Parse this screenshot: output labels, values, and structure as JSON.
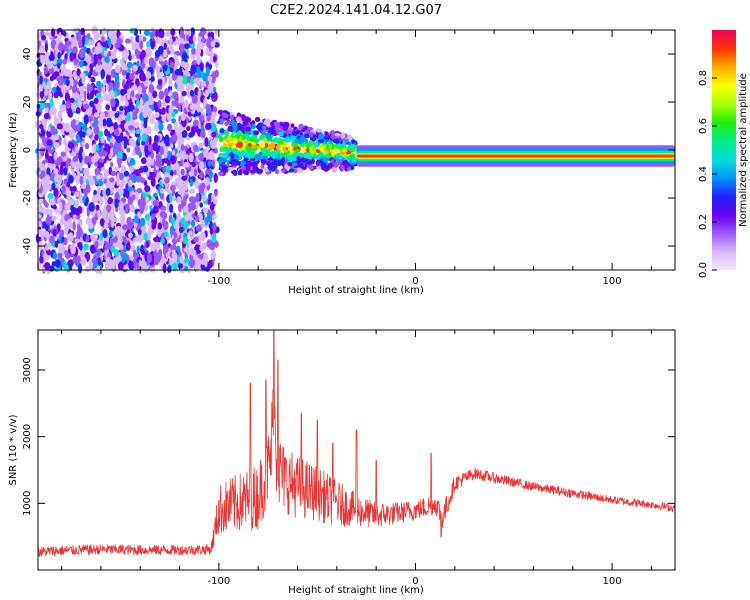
{
  "title": "C2E2.2024.141.04.12.G07",
  "chart_data": [
    {
      "type": "heatmap",
      "xlabel": "Height of straight line (km)",
      "ylabel": "Frequency (Hz)",
      "xlim": [
        -192,
        132
      ],
      "ylim": [
        -50,
        50
      ],
      "xticks": [
        -100,
        0,
        100
      ],
      "xtick_labels": [
        "-100",
        "0",
        "100"
      ],
      "yticks": [
        -40,
        -20,
        0,
        20,
        40
      ],
      "ytick_labels": [
        "-40",
        "-20",
        "0",
        "20",
        "40"
      ],
      "colorbar": {
        "label": "Normalized spectral amplitude",
        "range": [
          0,
          1
        ],
        "ticks": [
          0,
          0.2,
          0.4,
          0.6,
          0.8
        ],
        "tick_labels": [
          "0.0",
          "0.2",
          "0.4",
          "0.6",
          "0.8"
        ],
        "colormap": [
          "#f4e8ff",
          "#d9b8ff",
          "#9a55ff",
          "#6600ee",
          "#2222ff",
          "#0099ff",
          "#00e0d8",
          "#00ee88",
          "#22ee00",
          "#aaff00",
          "#ffff00",
          "#ffaa00",
          "#ff3300",
          "#ee0066"
        ]
      },
      "regions": [
        {
          "name": "noise",
          "x": [
            -192,
            -101
          ],
          "y": [
            -50,
            50
          ],
          "amplitude": 0.25
        },
        {
          "name": "wide-signal",
          "x": [
            -100,
            -30
          ],
          "center_freq": 3,
          "half_width_freq": 6,
          "amplitude": 0.55
        },
        {
          "name": "narrow-signal",
          "x": [
            -30,
            132
          ],
          "center_freq": -2.5,
          "half_width_freq": 2,
          "amplitude": 0.9
        }
      ],
      "grid": false
    },
    {
      "type": "line",
      "xlabel": "Height of straight line (km)",
      "ylabel": "SNR (10 * v/v)",
      "xlim": [
        -192,
        132
      ],
      "ylim": [
        0,
        3600
      ],
      "xticks": [
        -100,
        0,
        100
      ],
      "xtick_labels": [
        "-100",
        "0",
        "100"
      ],
      "yticks": [
        1000,
        2000,
        3000
      ],
      "ytick_labels": [
        "1000",
        "2000",
        "3000"
      ],
      "color": "#ee3333",
      "series": [
        {
          "x": [
            -192,
            -180,
            -160,
            -140,
            -120,
            -104,
            -100,
            -96,
            -90,
            -80,
            -74,
            -72,
            -70,
            -66,
            -60,
            -50,
            -40,
            -30,
            -20,
            -10,
            -4,
            0,
            6,
            10,
            14,
            20,
            30,
            40,
            60,
            80,
            100,
            120,
            132
          ],
          "y": [
            270,
            290,
            310,
            300,
            300,
            310,
            900,
            950,
            1000,
            1100,
            1600,
            2300,
            1500,
            1350,
            1250,
            1150,
            1000,
            900,
            820,
            850,
            880,
            900,
            950,
            1000,
            800,
            1300,
            1450,
            1380,
            1250,
            1150,
            1050,
            980,
            930
          ],
          "noise": [
            80,
            80,
            80,
            80,
            80,
            80,
            380,
            420,
            450,
            500,
            600,
            900,
            600,
            500,
            480,
            420,
            350,
            250,
            200,
            170,
            160,
            150,
            170,
            160,
            200,
            120,
            90,
            80,
            70,
            70,
            60,
            60,
            60
          ],
          "peaks": [
            [
              -72,
              3600
            ],
            [
              -70,
              3150
            ],
            [
              -76,
              2850
            ],
            [
              -84,
              2800
            ],
            [
              -58,
              2350
            ],
            [
              -50,
              2250
            ],
            [
              -30,
              2100
            ],
            [
              -20,
              1650
            ],
            [
              -42,
              1900
            ],
            [
              8,
              1750
            ],
            [
              13,
              500
            ]
          ]
        }
      ],
      "grid": false
    }
  ]
}
